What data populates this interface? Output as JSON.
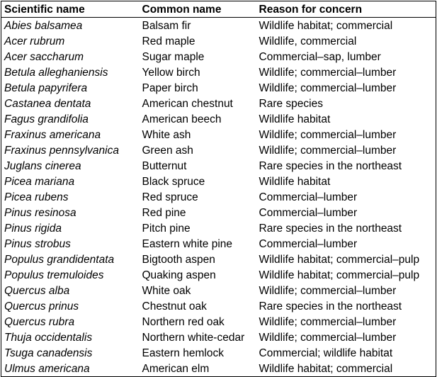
{
  "table": {
    "headers": [
      "Scientific name",
      "Common name",
      "Reason for concern"
    ],
    "rows": [
      [
        "Abies balsamea",
        "Balsam fir",
        "Wildlife habitat; commercial"
      ],
      [
        "Acer rubrum",
        "Red maple",
        "Wildlife, commercial"
      ],
      [
        "Acer saccharum",
        "Sugar maple",
        "Commercial–sap, lumber"
      ],
      [
        "Betula alleghaniensis",
        "Yellow birch",
        "Wildlife; commercial–lumber"
      ],
      [
        "Betula papyrifera",
        "Paper birch",
        "Wildlife; commercial–lumber"
      ],
      [
        "Castanea dentata",
        "American chestnut",
        "Rare species"
      ],
      [
        "Fagus grandifolia",
        "American beech",
        "Wildlife habitat"
      ],
      [
        "Fraxinus americana",
        "White ash",
        "Wildlife; commercial–lumber"
      ],
      [
        "Fraxinus pennsylvanica",
        "Green ash",
        "Wildlife; commercial–lumber"
      ],
      [
        "Juglans cinerea",
        "Butternut",
        "Rare species in the northeast"
      ],
      [
        "Picea mariana",
        "Black spruce",
        "Wildlife habitat"
      ],
      [
        "Picea rubens",
        "Red spruce",
        "Commercial–lumber"
      ],
      [
        "Pinus resinosa",
        "Red pine",
        "Commercial–lumber"
      ],
      [
        "Pinus rigida",
        "Pitch pine",
        "Rare species in the northeast"
      ],
      [
        "Pinus strobus",
        "Eastern white pine",
        "Commercial–lumber"
      ],
      [
        "Populus grandidentata",
        "Bigtooth aspen",
        "Wildlife habitat; commercial–pulp"
      ],
      [
        "Populus tremuloides",
        "Quaking aspen",
        "Wildlife habitat; commercial–pulp"
      ],
      [
        "Quercus alba",
        "White oak",
        "Wildlife; commercial–lumber"
      ],
      [
        "Quercus prinus",
        "Chestnut oak",
        "Rare species in the northeast"
      ],
      [
        "Quercus rubra",
        "Northern red oak",
        "Wildlife; commercial–lumber"
      ],
      [
        "Thuja occidentalis",
        "Northern white-cedar",
        "Wildlife; commercial–lumber"
      ],
      [
        "Tsuga canadensis",
        "Eastern hemlock",
        "Commercial; wildlife habitat"
      ],
      [
        "Ulmus americana",
        "American elm",
        "Wildlife habitat; commercial"
      ]
    ]
  }
}
